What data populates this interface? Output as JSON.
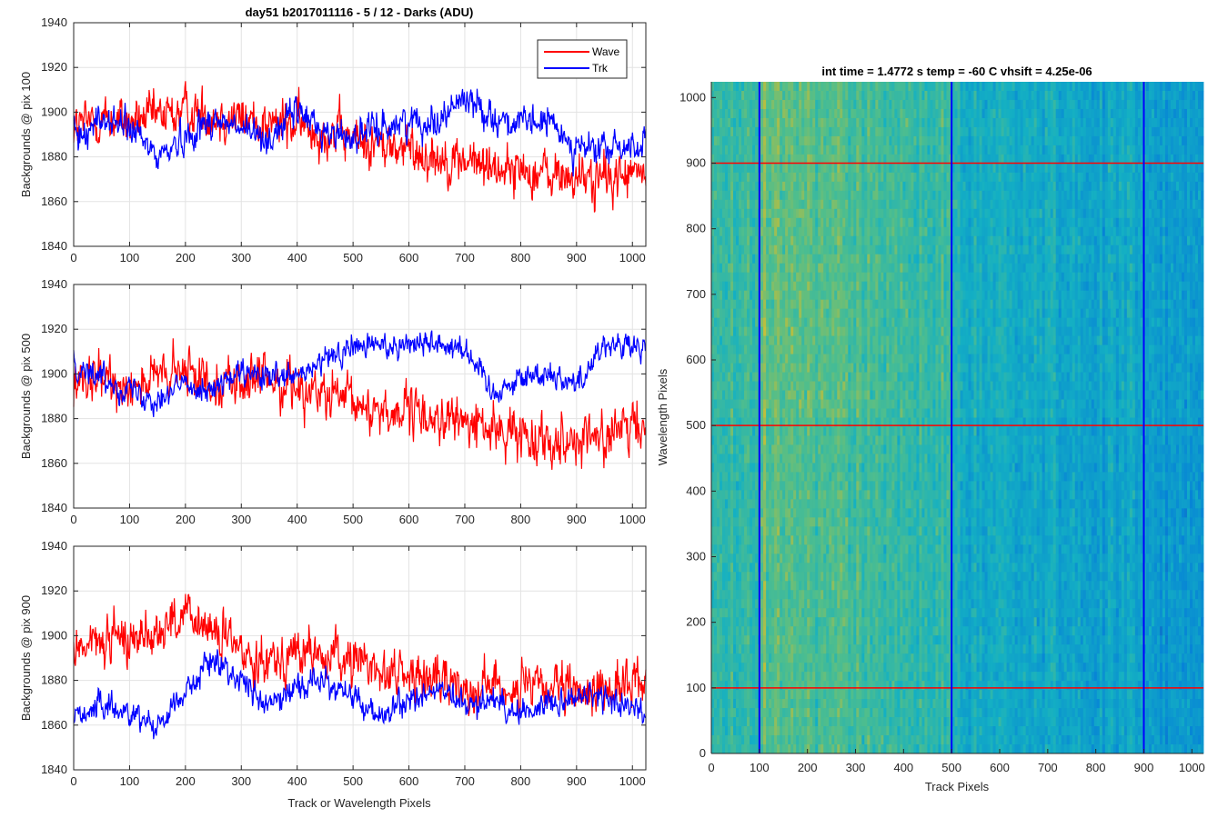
{
  "figure": {
    "suptitle": "day51 b2017011116 - 5 / 12 - Darks (ADU)",
    "colors": {
      "wave": "#ff0000",
      "trk": "#0000ff",
      "grid": "#e3e3e3",
      "axis": "#262626"
    }
  },
  "chart_data": [
    {
      "type": "line",
      "title": "",
      "xlabel": "",
      "ylabel": "Backgrounds @ pix 100",
      "xlim": [
        0,
        1024
      ],
      "ylim": [
        1840,
        1940
      ],
      "xticks": [
        0,
        100,
        200,
        300,
        400,
        500,
        600,
        700,
        800,
        900,
        1000
      ],
      "yticks": [
        1840,
        1860,
        1880,
        1900,
        1920,
        1940
      ],
      "grid": true,
      "legend": {
        "location": "top-right",
        "entries": [
          "Wave",
          "Trk"
        ]
      },
      "series": [
        {
          "name": "Wave",
          "color": "#ff0000",
          "x": [
            0,
            50,
            100,
            150,
            200,
            250,
            300,
            350,
            400,
            450,
            500,
            550,
            600,
            650,
            700,
            750,
            800,
            850,
            900,
            950,
            1024
          ],
          "values": [
            1893,
            1897,
            1895,
            1898,
            1900,
            1899,
            1897,
            1895,
            1894,
            1891,
            1888,
            1885,
            1883,
            1880,
            1878,
            1876,
            1874,
            1872,
            1870,
            1870,
            1873
          ],
          "noise": 9
        },
        {
          "name": "Trk",
          "color": "#0000ff",
          "x": [
            0,
            50,
            100,
            150,
            200,
            250,
            300,
            350,
            400,
            450,
            500,
            550,
            600,
            650,
            700,
            750,
            800,
            850,
            900,
            950,
            1024
          ],
          "values": [
            1888,
            1897,
            1893,
            1880,
            1889,
            1897,
            1892,
            1888,
            1901,
            1891,
            1889,
            1893,
            1896,
            1896,
            1907,
            1898,
            1894,
            1896,
            1884,
            1883,
            1886
          ],
          "noise": 6
        }
      ]
    },
    {
      "type": "line",
      "title": "",
      "xlabel": "",
      "ylabel": "Backgrounds @ pix 500",
      "xlim": [
        0,
        1024
      ],
      "ylim": [
        1840,
        1940
      ],
      "xticks": [
        0,
        100,
        200,
        300,
        400,
        500,
        600,
        700,
        800,
        900,
        1000
      ],
      "yticks": [
        1840,
        1860,
        1880,
        1900,
        1920,
        1940
      ],
      "grid": true,
      "series": [
        {
          "name": "Wave",
          "color": "#ff0000",
          "x": [
            0,
            50,
            100,
            150,
            200,
            250,
            300,
            350,
            400,
            450,
            500,
            550,
            600,
            650,
            700,
            750,
            800,
            850,
            900,
            950,
            1024
          ],
          "values": [
            1893,
            1897,
            1896,
            1898,
            1900,
            1898,
            1896,
            1897,
            1895,
            1890,
            1886,
            1884,
            1882,
            1880,
            1878,
            1875,
            1873,
            1872,
            1871,
            1872,
            1877
          ],
          "noise": 9
        },
        {
          "name": "Trk",
          "color": "#0000ff",
          "x": [
            0,
            50,
            100,
            150,
            200,
            250,
            300,
            350,
            400,
            450,
            500,
            550,
            600,
            650,
            700,
            750,
            800,
            850,
            900,
            950,
            1024
          ],
          "values": [
            1905,
            1898,
            1893,
            1889,
            1896,
            1893,
            1900,
            1898,
            1898,
            1906,
            1912,
            1913,
            1914,
            1914,
            1912,
            1892,
            1898,
            1901,
            1895,
            1914,
            1910
          ],
          "noise": 5
        }
      ]
    },
    {
      "type": "line",
      "title": "",
      "xlabel": "Track or Wavelength Pixels",
      "ylabel": "Backgrounds @ pix 900",
      "xlim": [
        0,
        1024
      ],
      "ylim": [
        1840,
        1940
      ],
      "xticks": [
        0,
        100,
        200,
        300,
        400,
        500,
        600,
        700,
        800,
        900,
        1000
      ],
      "yticks": [
        1840,
        1860,
        1880,
        1900,
        1920,
        1940
      ],
      "grid": true,
      "series": [
        {
          "name": "Wave",
          "color": "#ff0000",
          "x": [
            0,
            50,
            100,
            150,
            200,
            250,
            300,
            350,
            400,
            450,
            500,
            550,
            600,
            650,
            700,
            750,
            800,
            850,
            900,
            950,
            1024
          ],
          "values": [
            1895,
            1897,
            1899,
            1903,
            1908,
            1902,
            1893,
            1890,
            1893,
            1890,
            1889,
            1885,
            1882,
            1880,
            1877,
            1878,
            1876,
            1876,
            1874,
            1876,
            1881
          ],
          "noise": 9
        },
        {
          "name": "Trk",
          "color": "#0000ff",
          "x": [
            0,
            50,
            100,
            150,
            200,
            250,
            300,
            350,
            400,
            450,
            500,
            550,
            600,
            650,
            700,
            750,
            800,
            850,
            900,
            950,
            1024
          ],
          "values": [
            1865,
            1868,
            1866,
            1860,
            1875,
            1890,
            1880,
            1868,
            1878,
            1880,
            1872,
            1863,
            1871,
            1876,
            1868,
            1872,
            1865,
            1870,
            1873,
            1872,
            1866
          ],
          "noise": 5
        }
      ]
    },
    {
      "type": "heatmap",
      "title": "int time = 1.4772 s    temp = -60 C    vhsift = 4.25e-06",
      "xlabel": "Track Pixels",
      "ylabel": "Wavelength Pixels",
      "xlim": [
        0,
        1024
      ],
      "ylim": [
        0,
        1024
      ],
      "xticks": [
        0,
        100,
        200,
        300,
        400,
        500,
        600,
        700,
        800,
        900,
        1000
      ],
      "yticks": [
        0,
        100,
        200,
        300,
        400,
        500,
        600,
        700,
        800,
        900,
        1000
      ],
      "colormap": "parula",
      "grid": false,
      "marker_lines": {
        "vertical": {
          "color": "#0000ff",
          "x": [
            100,
            500,
            900
          ]
        },
        "horizontal": {
          "color": "#ff0000",
          "y": [
            100,
            500,
            900
          ]
        }
      }
    }
  ]
}
